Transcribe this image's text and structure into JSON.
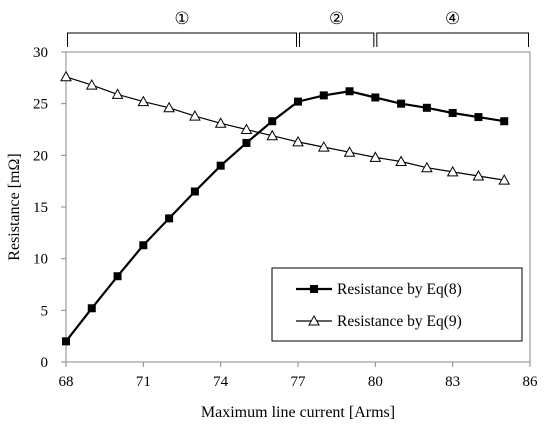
{
  "chart_data": {
    "type": "line",
    "title": "",
    "xlabel": "Maximum line current [Arms]",
    "ylabel": "Resistance [mΩ]",
    "xlim": [
      68,
      86
    ],
    "ylim": [
      0,
      30
    ],
    "xticks": [
      68,
      71,
      74,
      77,
      80,
      83,
      86
    ],
    "yticks": [
      0,
      5,
      10,
      15,
      20,
      25,
      30
    ],
    "grid": false,
    "legend_position": "bottom-right",
    "regions": [
      {
        "label": "①",
        "from": 68,
        "to": 77
      },
      {
        "label": "②",
        "from": 77,
        "to": 80
      },
      {
        "label": "④",
        "from": 80,
        "to": 86
      }
    ],
    "series": [
      {
        "name": "Resistance by Eq(8)",
        "marker": "filled-square",
        "x": [
          68,
          69,
          70,
          71,
          72,
          73,
          74,
          75,
          76,
          77,
          78,
          79,
          80,
          81,
          82,
          83,
          84,
          85
        ],
        "y": [
          2.0,
          5.2,
          8.3,
          11.3,
          13.9,
          16.5,
          19.0,
          21.2,
          23.3,
          25.2,
          25.8,
          26.2,
          25.6,
          25.0,
          24.6,
          24.1,
          23.7,
          23.3
        ]
      },
      {
        "name": "Resistance by Eq(9)",
        "marker": "open-triangle",
        "x": [
          68,
          69,
          70,
          71,
          72,
          73,
          74,
          75,
          76,
          77,
          78,
          79,
          80,
          81,
          82,
          83,
          84,
          85
        ],
        "y": [
          27.6,
          26.8,
          25.9,
          25.2,
          24.6,
          23.8,
          23.1,
          22.5,
          21.9,
          21.3,
          20.8,
          20.3,
          19.8,
          19.4,
          18.8,
          18.4,
          18.0,
          17.6
        ]
      }
    ]
  }
}
